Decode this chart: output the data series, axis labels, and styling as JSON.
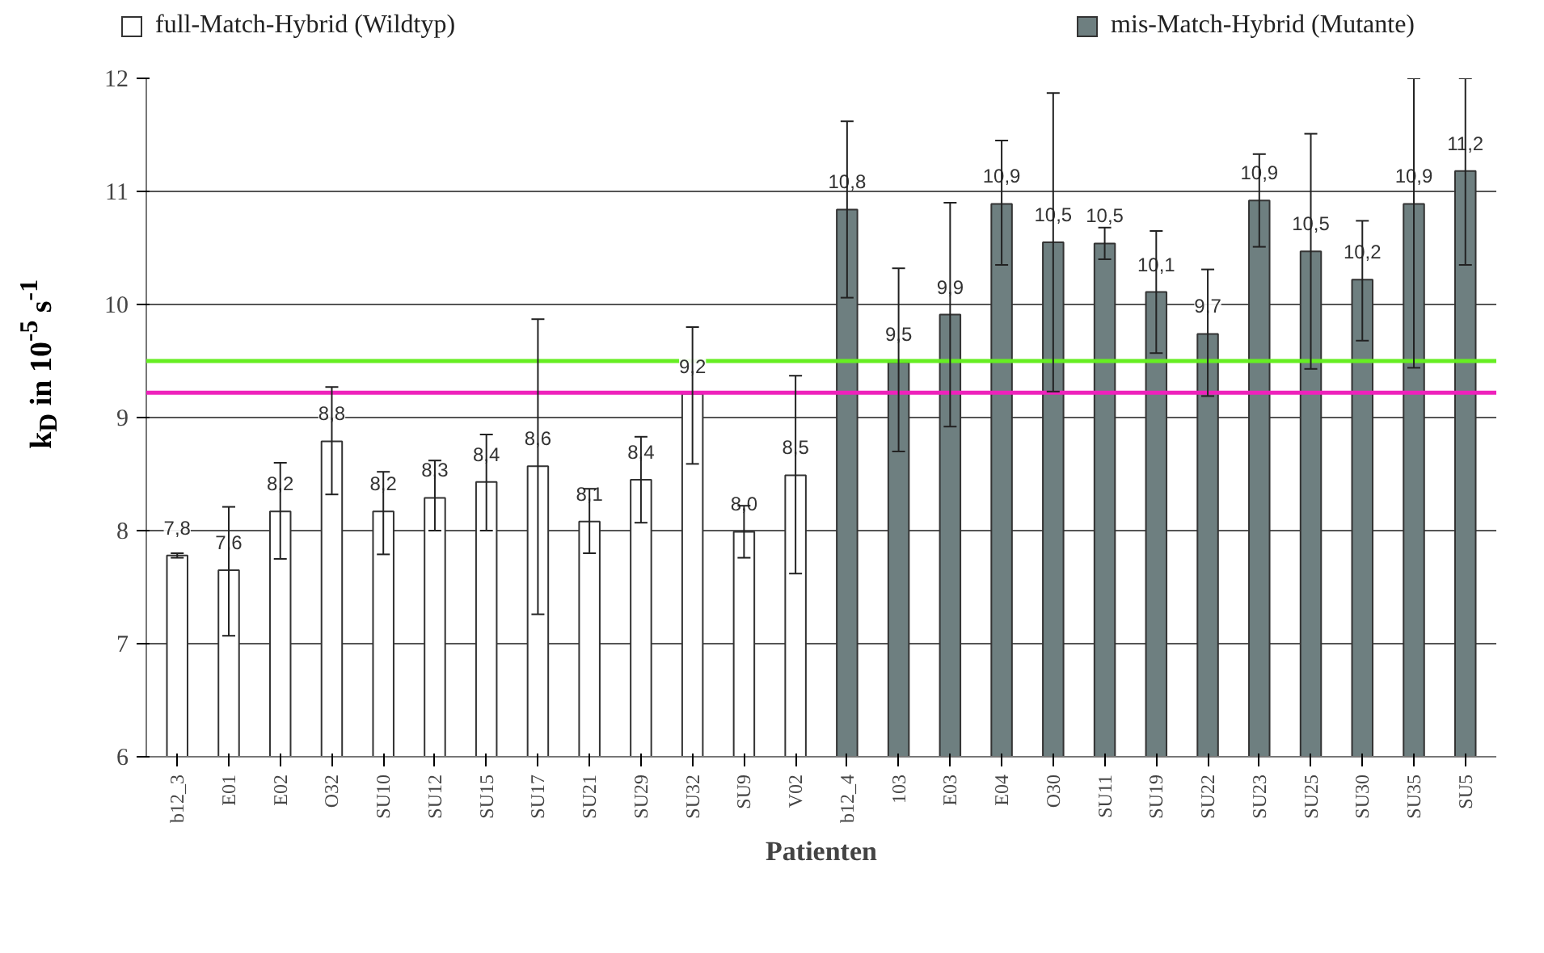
{
  "chart_data": {
    "type": "bar",
    "xlabel": "Patienten",
    "ylabel": "k$_{D}$ in 10$^{-5}$ s$^{-1}$",
    "categories": [
      "b12_3",
      "E01",
      "E02",
      "O32",
      "SU10",
      "SU12",
      "SU15",
      "SU17",
      "SU21",
      "SU29",
      "SU32",
      "SU9",
      "V02",
      "b12_4",
      "103",
      "E03",
      "E04",
      "O30",
      "SU11",
      "SU19",
      "SU22",
      "SU23",
      "SU25",
      "SU30",
      "SU35",
      "SU5"
    ],
    "series": [
      {
        "name": "full-Match-Hybrid (Wildtyp)",
        "color": "#ffffff",
        "values": [
          7.78,
          7.65,
          8.17,
          8.79,
          8.17,
          8.29,
          8.43,
          8.57,
          8.08,
          8.45,
          9.21,
          7.99,
          8.49,
          null,
          null,
          null,
          null,
          null,
          null,
          null,
          null,
          null,
          null,
          null,
          null,
          null
        ],
        "errors": [
          [
            7.76,
            7.8
          ],
          [
            7.07,
            8.21
          ],
          [
            7.75,
            8.6
          ],
          [
            8.32,
            9.27
          ],
          [
            7.79,
            8.52
          ],
          [
            8.0,
            8.62
          ],
          [
            8.0,
            8.85
          ],
          [
            7.26,
            9.87
          ],
          [
            7.8,
            8.37
          ],
          [
            8.07,
            8.83
          ],
          [
            8.59,
            9.8
          ],
          [
            7.76,
            8.22
          ],
          [
            7.62,
            9.37
          ],
          null,
          null,
          null,
          null,
          null,
          null,
          null,
          null,
          null,
          null,
          null,
          null,
          null
        ],
        "value_labels": [
          "7,8",
          "7,6",
          "8,2",
          "8,8",
          "8,2",
          "8,3",
          "8,4",
          "8,6",
          "8,1",
          "8,4",
          "9,2",
          "8,0",
          "8,5",
          null,
          null,
          null,
          null,
          null,
          null,
          null,
          null,
          null,
          null,
          null,
          null,
          null
        ]
      },
      {
        "name": "mis-Match-Hybrid (Mutante)",
        "color": "#6e7f80",
        "values": [
          null,
          null,
          null,
          null,
          null,
          null,
          null,
          null,
          null,
          null,
          null,
          null,
          null,
          10.84,
          9.49,
          9.91,
          10.89,
          10.55,
          10.54,
          10.11,
          9.74,
          10.92,
          10.47,
          10.22,
          10.89,
          11.18
        ],
        "errors": [
          null,
          null,
          null,
          null,
          null,
          null,
          null,
          null,
          null,
          null,
          null,
          null,
          null,
          [
            10.06,
            11.62
          ],
          [
            8.7,
            10.32
          ],
          [
            8.92,
            10.9
          ],
          [
            10.35,
            11.45
          ],
          [
            9.23,
            11.87
          ],
          [
            10.4,
            10.68
          ],
          [
            9.57,
            10.65
          ],
          [
            9.19,
            10.31
          ],
          [
            10.51,
            11.33
          ],
          [
            9.43,
            11.51
          ],
          [
            9.68,
            10.74
          ],
          [
            9.44,
            12.0
          ],
          [
            10.35,
            12.0
          ]
        ],
        "value_labels": [
          null,
          null,
          null,
          null,
          null,
          null,
          null,
          null,
          null,
          null,
          null,
          null,
          null,
          "10,8",
          "9,5",
          "9,9",
          "10,9",
          "10,5",
          "10,5",
          "10,1",
          "9,7",
          "10,9",
          "10,5",
          "10,2",
          "10,9",
          "11,2"
        ]
      }
    ],
    "ylim": [
      6,
      12
    ],
    "yticks": [
      6,
      7,
      8,
      9,
      10,
      11,
      12
    ],
    "grid": "y",
    "legend": "top",
    "ref_lines": [
      {
        "axis": "y",
        "value": 9.5,
        "color": "#66ee22"
      },
      {
        "axis": "y",
        "value": 9.22,
        "color": "#ee22bb"
      }
    ]
  }
}
